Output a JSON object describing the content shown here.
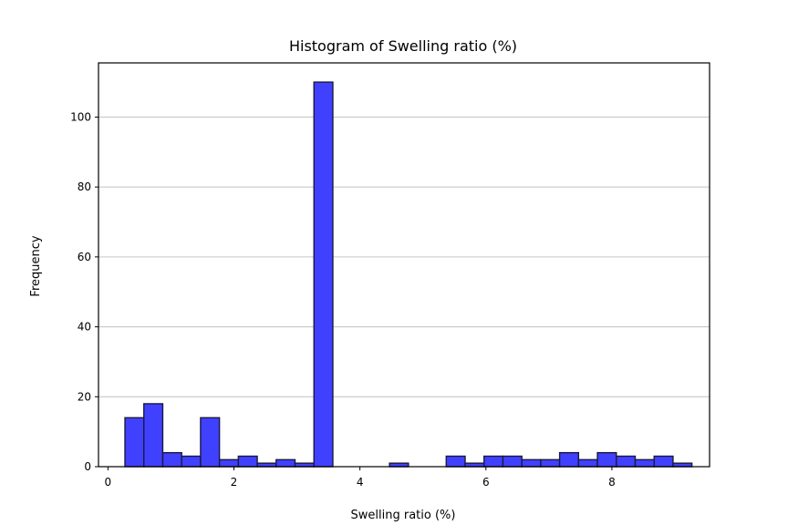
{
  "chart_data": {
    "type": "bar",
    "title": "Histogram of Swelling ratio (%)",
    "xlabel": "Swelling ratio (%)",
    "ylabel": "Frequency",
    "xlim": [
      -0.15,
      9.55
    ],
    "ylim": [
      0,
      115.5
    ],
    "xticks": [
      0,
      2,
      4,
      6,
      8
    ],
    "yticks": [
      0,
      20,
      40,
      60,
      80,
      100
    ],
    "grid": "y-axis horizontal lines",
    "bar_color": "#4040ff",
    "bar_edge_color": "#1a1a40",
    "bins": {
      "start": 0.27,
      "width": 0.3,
      "counts": [
        14,
        18,
        4,
        3,
        14,
        2,
        3,
        1,
        2,
        1,
        110,
        0,
        0,
        0,
        1,
        0,
        0,
        3,
        1,
        3,
        3,
        2,
        2,
        4,
        2,
        4,
        3,
        2,
        3,
        1
      ]
    }
  }
}
